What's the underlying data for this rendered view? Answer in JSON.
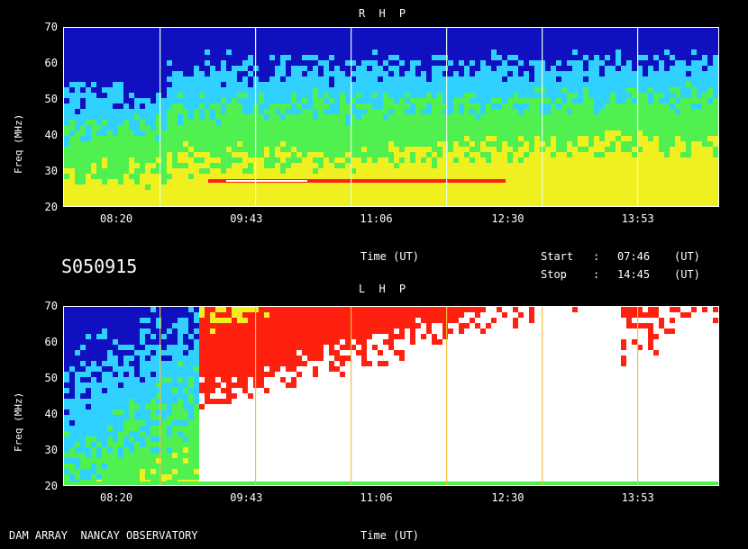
{
  "session_id": "S050915",
  "footer_left": "DAM ARRAY  NANCAY OBSERVATORY",
  "time_label": "Time (UT)",
  "start": {
    "label": "Start",
    "sep": ":",
    "value": "07:46",
    "unit": "(UT)"
  },
  "stop": {
    "label": "Stop",
    "sep": ":",
    "value": "14:45",
    "unit": "(UT)"
  },
  "chart_data": [
    {
      "type": "heatmap",
      "title": "R H P",
      "xlabel": "Time (UT)",
      "ylabel": "Freq (MHz)",
      "x_ticks": [
        "08:20",
        "09:43",
        "11:06",
        "12:30",
        "13:53"
      ],
      "y_ticks": [
        20,
        30,
        40,
        50,
        60,
        70
      ],
      "xlim": [
        "07:46",
        "14:45"
      ],
      "ylim": [
        20,
        70
      ],
      "colors": {
        "low": "#1010c0",
        "mid": "#30d0ff",
        "high": "#50f050",
        "hot": "#f0f020",
        "burst": "#ff2010",
        "sat": "#ffffff"
      }
    },
    {
      "type": "heatmap",
      "title": "L H P",
      "xlabel": "Time (UT)",
      "ylabel": "Freq (MHz)",
      "x_ticks": [
        "08:20",
        "09:43",
        "11:06",
        "12:30",
        "13:53"
      ],
      "y_ticks": [
        20,
        30,
        40,
        50,
        60,
        70
      ],
      "xlim": [
        "07:46",
        "14:45"
      ],
      "ylim": [
        20,
        70
      ],
      "colors": {
        "low": "#1010c0",
        "mid": "#30d0ff",
        "high": "#50f050",
        "hot": "#f0f020",
        "burst": "#ff2010",
        "sat": "#ffffff"
      }
    }
  ]
}
